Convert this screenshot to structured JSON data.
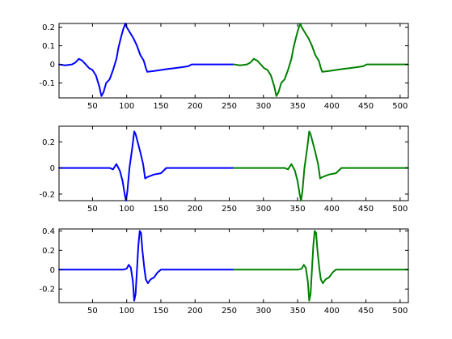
{
  "chart_data": [
    {
      "type": "line",
      "xlim": [
        1,
        512
      ],
      "ylim": [
        -0.18,
        0.22
      ],
      "xticks": [
        50,
        100,
        150,
        200,
        250,
        300,
        350,
        400,
        450,
        500
      ],
      "yticks": [
        -0.1,
        0,
        0.1,
        0.2
      ],
      "ytick_labels": [
        "-0.1",
        "0",
        "0.1",
        "0.2"
      ],
      "grid": false,
      "series": [
        {
          "color": "#0000ff",
          "x": [
            1,
            10,
            20,
            25,
            30,
            35,
            40,
            45,
            50,
            55,
            60,
            63,
            66,
            70,
            75,
            80,
            85,
            88,
            92,
            95,
            97,
            98,
            100,
            105,
            110,
            115,
            120,
            125,
            128,
            130,
            140,
            150,
            160,
            170,
            180,
            190,
            195,
            200,
            210,
            220,
            230,
            240,
            250,
            256
          ],
          "y": [
            0,
            -0.005,
            0,
            0.01,
            0.03,
            0.02,
            0.0,
            -0.02,
            -0.03,
            -0.06,
            -0.12,
            -0.17,
            -0.15,
            -0.1,
            -0.08,
            -0.03,
            0.03,
            0.09,
            0.15,
            0.19,
            0.21,
            0.22,
            0.2,
            0.17,
            0.14,
            0.1,
            0.05,
            0.02,
            -0.02,
            -0.04,
            -0.035,
            -0.03,
            -0.025,
            -0.02,
            -0.015,
            -0.01,
            0,
            0,
            0,
            0,
            0,
            0,
            0,
            0
          ]
        },
        {
          "color": "#008000",
          "x": [
            257,
            266,
            276,
            281,
            286,
            291,
            296,
            301,
            306,
            311,
            316,
            319,
            322,
            326,
            331,
            336,
            341,
            344,
            348,
            351,
            353,
            354,
            356,
            361,
            366,
            371,
            376,
            381,
            384,
            386,
            396,
            406,
            416,
            426,
            436,
            446,
            451,
            456,
            466,
            476,
            486,
            496,
            506,
            512
          ],
          "y": [
            0,
            -0.005,
            0,
            0.01,
            0.03,
            0.02,
            0.0,
            -0.02,
            -0.03,
            -0.06,
            -0.12,
            -0.17,
            -0.15,
            -0.1,
            -0.08,
            -0.03,
            0.03,
            0.09,
            0.15,
            0.19,
            0.21,
            0.22,
            0.2,
            0.17,
            0.14,
            0.1,
            0.05,
            0.02,
            -0.02,
            -0.04,
            -0.035,
            -0.03,
            -0.025,
            -0.02,
            -0.015,
            -0.01,
            0,
            0,
            0,
            0,
            0,
            0,
            0,
            0
          ]
        }
      ]
    },
    {
      "type": "line",
      "xlim": [
        1,
        512
      ],
      "ylim": [
        -0.25,
        0.32
      ],
      "xticks": [
        50,
        100,
        150,
        200,
        250,
        300,
        350,
        400,
        450,
        500
      ],
      "yticks": [
        -0.2,
        0,
        0.2
      ],
      "ytick_labels": [
        "-0.2",
        "0",
        "0.2"
      ],
      "grid": false,
      "series": [
        {
          "color": "#0000ff",
          "x": [
            1,
            50,
            70,
            75,
            80,
            85,
            90,
            94,
            97,
            99,
            101,
            104,
            108,
            111,
            113,
            116,
            120,
            124,
            127,
            130,
            140,
            150,
            158,
            165,
            180,
            200,
            220,
            256
          ],
          "y": [
            0,
            0,
            0,
            0,
            -0.01,
            0.03,
            -0.02,
            -0.1,
            -0.2,
            -0.25,
            -0.18,
            0.0,
            0.15,
            0.28,
            0.26,
            0.2,
            0.12,
            0.03,
            -0.08,
            -0.07,
            -0.05,
            -0.04,
            0,
            0,
            0,
            0,
            0,
            0
          ]
        },
        {
          "color": "#008000",
          "x": [
            257,
            306,
            326,
            331,
            336,
            341,
            346,
            350,
            353,
            355,
            357,
            360,
            364,
            367,
            369,
            372,
            376,
            380,
            383,
            386,
            396,
            406,
            414,
            421,
            436,
            456,
            476,
            512
          ],
          "y": [
            0,
            0,
            0,
            0,
            -0.01,
            0.03,
            -0.02,
            -0.1,
            -0.2,
            -0.25,
            -0.18,
            0.0,
            0.15,
            0.28,
            0.26,
            0.2,
            0.12,
            0.03,
            -0.08,
            -0.07,
            -0.05,
            -0.04,
            0,
            0,
            0,
            0,
            0,
            0
          ]
        }
      ]
    },
    {
      "type": "line",
      "xlim": [
        1,
        512
      ],
      "ylim": [
        -0.34,
        0.42
      ],
      "xticks": [
        50,
        100,
        150,
        200,
        250,
        300,
        350,
        400,
        450,
        500
      ],
      "yticks": [
        -0.2,
        0,
        0.2,
        0.4
      ],
      "ytick_labels": [
        "-0.2",
        "0",
        "0.2",
        "0.4"
      ],
      "grid": false,
      "series": [
        {
          "color": "#0000ff",
          "x": [
            1,
            80,
            95,
            100,
            103,
            106,
            109,
            111,
            113,
            115,
            117,
            119,
            121,
            123,
            126,
            128,
            131,
            135,
            140,
            145,
            150,
            180,
            220,
            256
          ],
          "y": [
            0,
            0,
            0,
            0.01,
            0.05,
            0.02,
            -0.12,
            -0.32,
            -0.25,
            0.0,
            0.25,
            0.4,
            0.38,
            0.2,
            0.0,
            -0.1,
            -0.14,
            -0.1,
            -0.08,
            -0.03,
            0,
            0,
            0,
            0
          ]
        },
        {
          "color": "#008000",
          "x": [
            257,
            336,
            351,
            356,
            359,
            362,
            365,
            367,
            369,
            371,
            373,
            375,
            377,
            379,
            382,
            384,
            387,
            391,
            396,
            401,
            406,
            436,
            476,
            512
          ],
          "y": [
            0,
            0,
            0,
            0.01,
            0.05,
            0.02,
            -0.12,
            -0.32,
            -0.25,
            0.0,
            0.25,
            0.4,
            0.38,
            0.2,
            0.0,
            -0.1,
            -0.14,
            -0.1,
            -0.08,
            -0.03,
            0,
            0,
            0,
            0
          ]
        }
      ]
    }
  ]
}
